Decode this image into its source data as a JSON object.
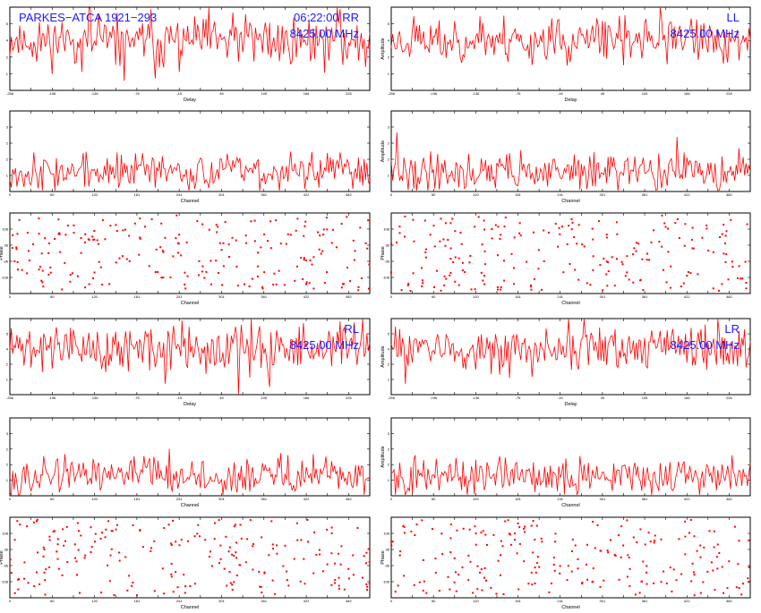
{
  "header": {
    "source": "PARKES−ATCA 1921−293",
    "time": "06:22:00",
    "frequency": "8425.00 MHz"
  },
  "colors": {
    "trace": "#ff0000",
    "annotation": "#1a1aff",
    "axes": "#000000"
  },
  "chart_data": [
    {
      "type": "line",
      "row": 0,
      "col": 0,
      "polarization": "RR",
      "pol_label": "RR",
      "time_label": "06:22:00",
      "freq_label": "8425.00 MHz",
      "source_label": "PARKES−ATCA 1921−293",
      "xlabel": "Delay",
      "ylabel": "",
      "xlim": [
        -256,
        256
      ],
      "ylim": [
        0,
        6
      ],
      "seed": 11,
      "base": 3.6,
      "noise": 0.9,
      "npts": 256
    },
    {
      "type": "line",
      "row": 0,
      "col": 1,
      "polarization": "LL",
      "pol_label": "LL",
      "freq_label": "8425.00 MHz",
      "xlabel": "Delay",
      "ylabel": "Amplitude",
      "xlim": [
        -256,
        256
      ],
      "ylim": [
        0,
        6
      ],
      "seed": 23,
      "base": 3.6,
      "noise": 0.8,
      "npts": 256
    },
    {
      "type": "line",
      "row": 1,
      "col": 0,
      "polarization": "RR",
      "xlabel": "Channel",
      "ylabel": "",
      "xlim": [
        0,
        512
      ],
      "ylim": [
        0,
        4
      ],
      "seed": 37,
      "base": 1.0,
      "noise": 0.45,
      "npts": 256
    },
    {
      "type": "line",
      "row": 1,
      "col": 1,
      "polarization": "LL",
      "xlabel": "Channel",
      "ylabel": "Amplitude",
      "xlim": [
        0,
        512
      ],
      "ylim": [
        0,
        4
      ],
      "seed": 41,
      "base": 1.0,
      "noise": 0.45,
      "npts": 256
    },
    {
      "type": "scatter",
      "row": 2,
      "col": 0,
      "polarization": "RR",
      "xlabel": "Channel",
      "ylabel": "Phase",
      "xlim": [
        0,
        512
      ],
      "ylim": [
        -180,
        180
      ],
      "seed": 53,
      "npts": 220
    },
    {
      "type": "scatter",
      "row": 2,
      "col": 1,
      "polarization": "LL",
      "xlabel": "Channel",
      "ylabel": "Phase",
      "xlim": [
        0,
        512
      ],
      "ylim": [
        -180,
        180
      ],
      "seed": 67,
      "npts": 220
    },
    {
      "type": "line",
      "row": 3,
      "col": 0,
      "polarization": "RL",
      "pol_label": "RL",
      "freq_label": "8425.00 MHz",
      "xlabel": "Delay",
      "ylabel": "",
      "xlim": [
        -256,
        256
      ],
      "ylim": [
        0,
        6
      ],
      "seed": 71,
      "base": 3.6,
      "noise": 0.95,
      "npts": 256
    },
    {
      "type": "line",
      "row": 3,
      "col": 1,
      "polarization": "LR",
      "pol_label": "LR",
      "freq_label": "8425.00 MHz",
      "xlabel": "Delay",
      "ylabel": "Amplitude",
      "xlim": [
        -256,
        256
      ],
      "ylim": [
        0,
        6
      ],
      "seed": 83,
      "base": 3.6,
      "noise": 0.85,
      "npts": 256
    },
    {
      "type": "line",
      "row": 4,
      "col": 0,
      "polarization": "RL",
      "xlabel": "Channel",
      "ylabel": "",
      "xlim": [
        0,
        512
      ],
      "ylim": [
        0,
        4
      ],
      "seed": 97,
      "base": 1.0,
      "noise": 0.45,
      "npts": 256
    },
    {
      "type": "line",
      "row": 4,
      "col": 1,
      "polarization": "LR",
      "xlabel": "Channel",
      "ylabel": "Amplitude",
      "xlim": [
        0,
        512
      ],
      "ylim": [
        0,
        4
      ],
      "seed": 101,
      "base": 1.0,
      "noise": 0.45,
      "npts": 256
    },
    {
      "type": "scatter",
      "row": 5,
      "col": 0,
      "polarization": "RL",
      "xlabel": "Channel",
      "ylabel": "Phase",
      "xlim": [
        0,
        512
      ],
      "ylim": [
        -180,
        180
      ],
      "seed": 113,
      "npts": 220
    },
    {
      "type": "scatter",
      "row": 5,
      "col": 1,
      "polarization": "LR",
      "xlabel": "Channel",
      "ylabel": "Phase",
      "xlim": [
        0,
        512
      ],
      "ylim": [
        -180,
        180
      ],
      "seed": 127,
      "npts": 220
    }
  ]
}
